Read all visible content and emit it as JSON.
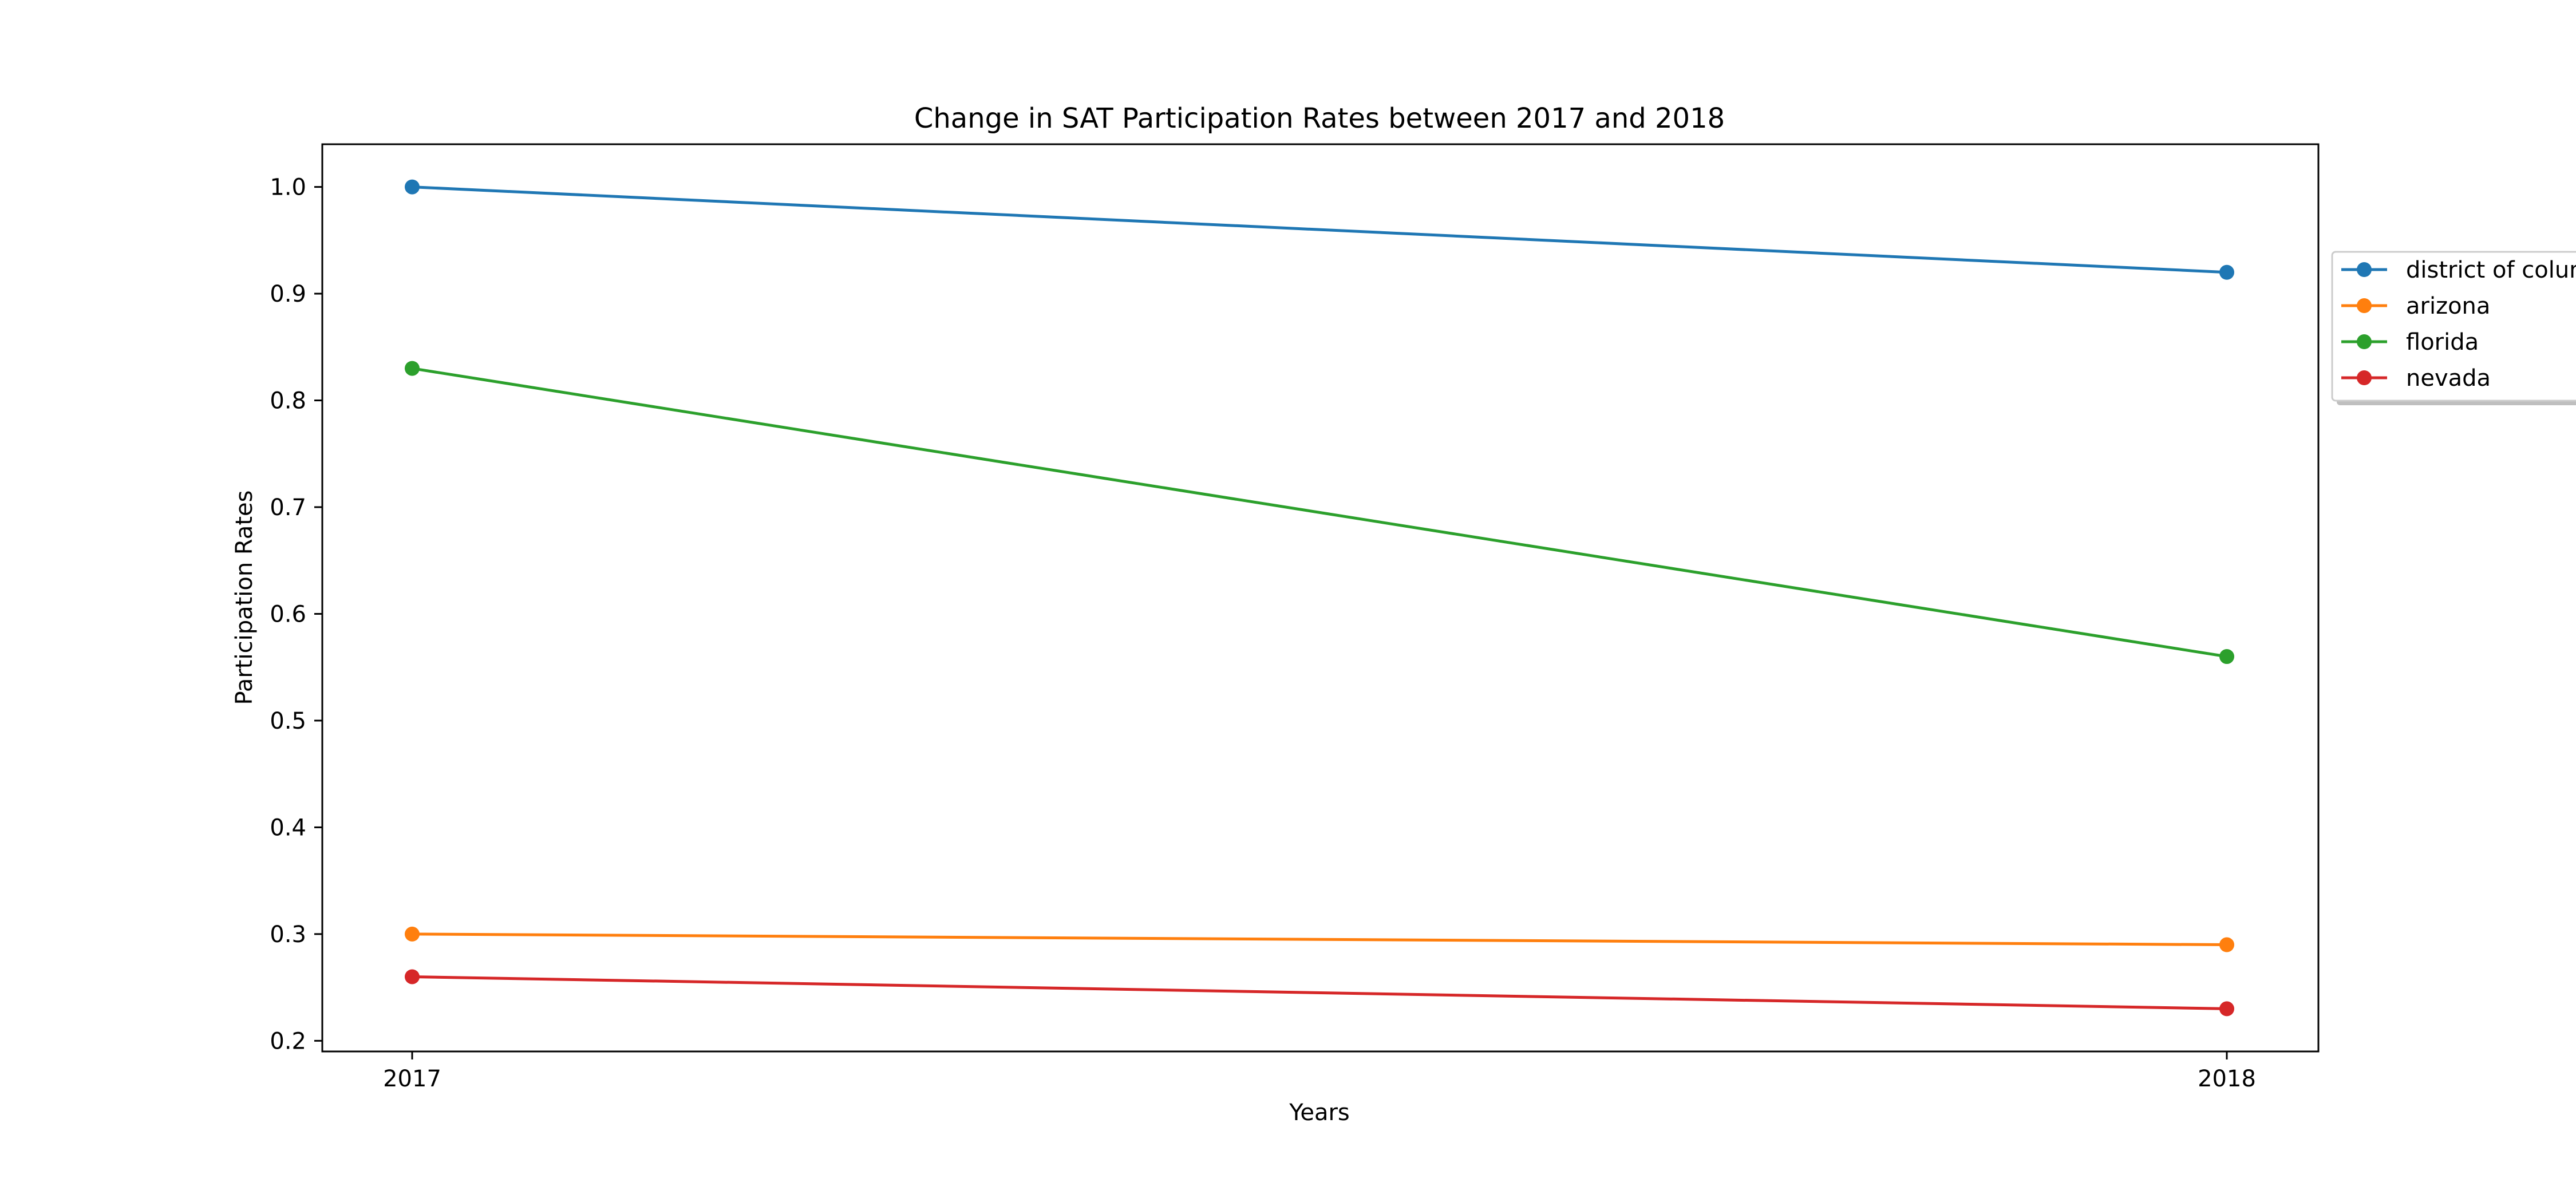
{
  "chart_data": {
    "type": "line",
    "title": "Change in SAT Participation Rates between 2017 and 2018",
    "xlabel": "Years",
    "ylabel": "Participation Rates",
    "x": [
      "2017",
      "2018"
    ],
    "ylim": [
      0.19,
      1.04
    ],
    "yticks": [
      "0.2",
      "0.3",
      "0.4",
      "0.5",
      "0.6",
      "0.7",
      "0.8",
      "0.9",
      "1.0"
    ],
    "grid": false,
    "legend_position": "outside-right-top",
    "series": [
      {
        "name": "district of columbia",
        "values": [
          1.0,
          0.92
        ],
        "color": "#1f77b4"
      },
      {
        "name": "arizona",
        "values": [
          0.3,
          0.29
        ],
        "color": "#ff7f0e"
      },
      {
        "name": "florida",
        "values": [
          0.83,
          0.56
        ],
        "color": "#2ca02c"
      },
      {
        "name": "nevada",
        "values": [
          0.26,
          0.23
        ],
        "color": "#d62728"
      }
    ]
  }
}
